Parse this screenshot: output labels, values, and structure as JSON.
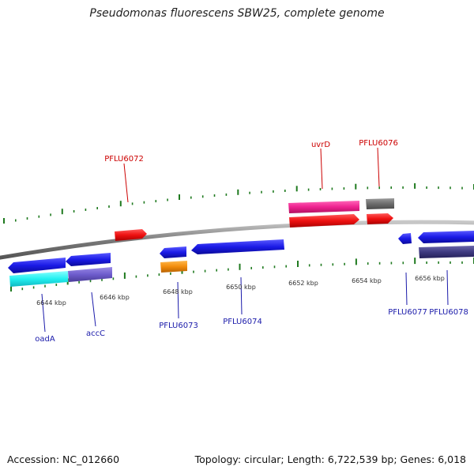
{
  "title": "Pseudomonas fluorescens SBW25, complete genome",
  "footer": {
    "accession": "Accession: NC_012660",
    "summary": "Topology: circular; Length: 6,722,539 bp; Genes: 6,018"
  },
  "colors": {
    "backbone": "#8c8c8c",
    "tick": "#1f7a1f",
    "label_top": "#cc0000",
    "label_bottom": "#1a1aaa",
    "scale_text": "#333333"
  },
  "scale_labels": [
    {
      "text": "6644 kbp"
    },
    {
      "text": "6646 kbp"
    },
    {
      "text": "6648 kbp"
    },
    {
      "text": "6650 kbp"
    },
    {
      "text": "6652 kbp"
    },
    {
      "text": "6654 kbp"
    },
    {
      "text": "6656 kbp"
    }
  ],
  "gene_labels_top": [
    {
      "text": "PFLU6072"
    },
    {
      "text": "uvrD"
    },
    {
      "text": "PFLU6076"
    }
  ],
  "gene_labels_bottom": [
    {
      "text": "oadA"
    },
    {
      "text": "accC"
    },
    {
      "text": "PFLU6073"
    },
    {
      "text": "PFLU6074"
    },
    {
      "text": "PFLU6077"
    },
    {
      "text": "PFLU6078"
    }
  ]
}
